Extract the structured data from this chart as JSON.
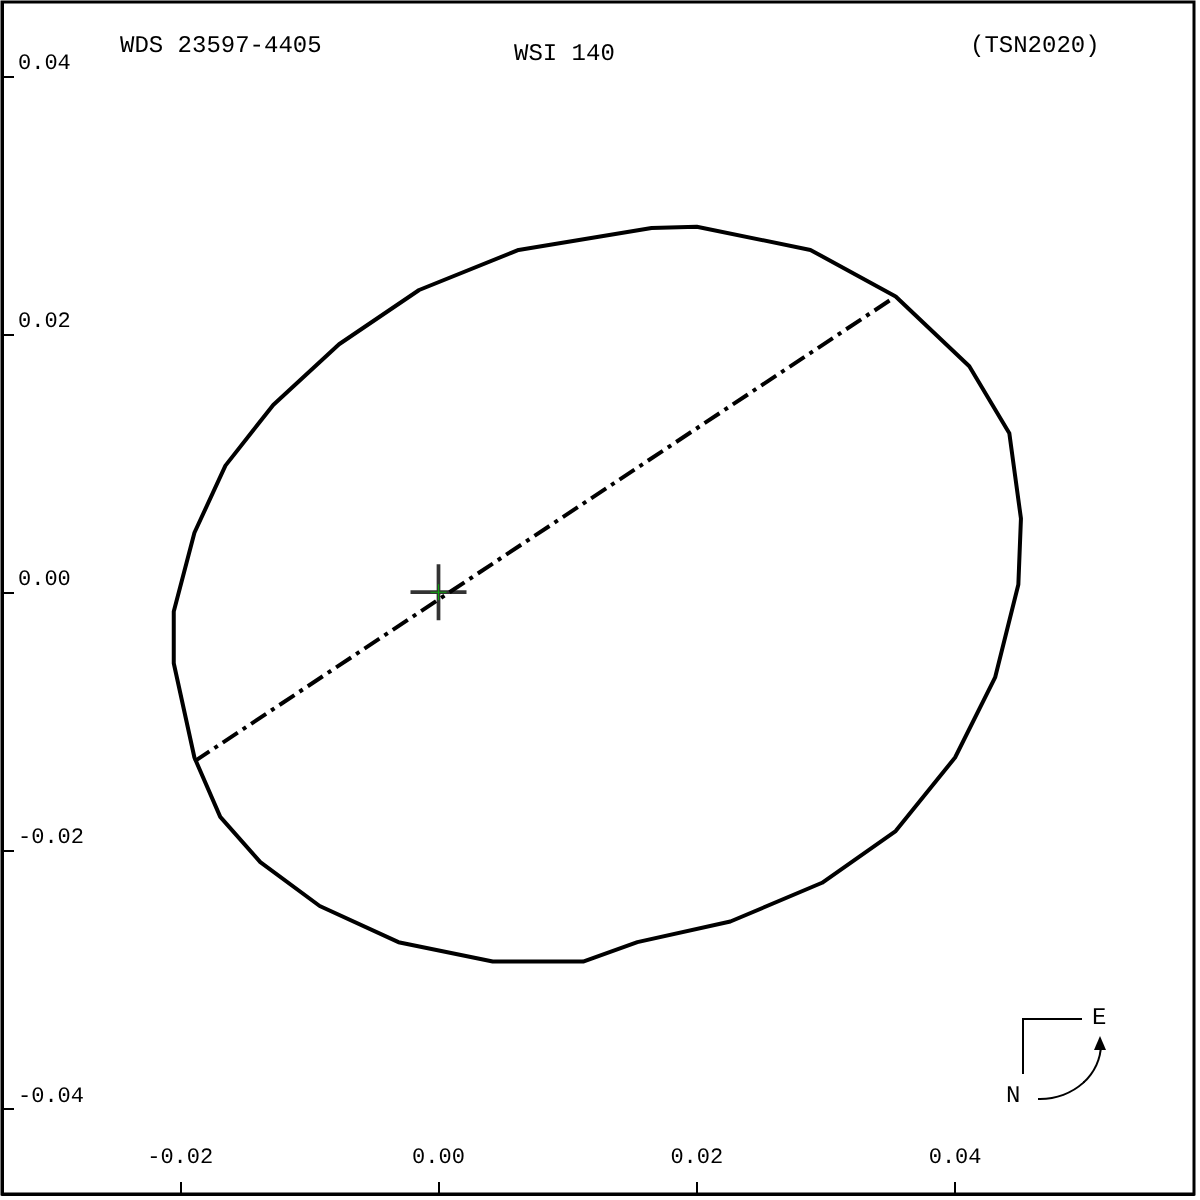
{
  "chart_data": {
    "type": "line",
    "title": "WSI 140",
    "annotations": [
      "WDS 23597-4405",
      "(TSN2020)",
      "N",
      "E"
    ],
    "xlim": [
      -0.0338,
      0.0585
    ],
    "ylim": [
      -0.0466,
      0.0457
    ],
    "xticks": [
      {
        "value": -0.02,
        "label": "-0.02"
      },
      {
        "value": 0,
        "label": "0.00"
      },
      {
        "value": 0.02,
        "label": "0.02"
      },
      {
        "value": 0.04,
        "label": "0.04"
      }
    ],
    "yticks": [
      {
        "value": -0.04,
        "label": "-0.04"
      },
      {
        "value": -0.02,
        "label": "-0.02"
      },
      {
        "value": 0,
        "label": "0.00"
      },
      {
        "value": 0.02,
        "label": "0.02"
      },
      {
        "value": 0.04,
        "label": "0.04"
      }
    ],
    "grid": false,
    "marker": "none",
    "series": [
      {
        "color": "#000000",
        "line_style": "dashed",
        "x": [
          -0.0189,
          0.0354
        ],
        "values": [
          -0.0131,
          0.0229
        ]
      },
      {
        "color": "#000000",
        "x": [
          0.0165,
          0.02,
          0.0288,
          0.0354,
          0.0411,
          0.0442,
          0.0451,
          0.0449,
          0.0431,
          0.04,
          0.0354,
          0.0297,
          0.0226,
          0.0154,
          0.0112,
          0.0042,
          -0.0031,
          -0.0092,
          -0.0138,
          -0.0169,
          -0.0189,
          -0.0205,
          -0.0205,
          -0.0189,
          -0.0165,
          -0.0128,
          -0.0077,
          -0.0015,
          0.0062,
          0.0165,
          0.02
        ],
        "values": [
          0.0282,
          0.0283,
          0.0265,
          0.0229,
          0.0175,
          0.0123,
          0.0057,
          0.0006,
          -0.0066,
          -0.0128,
          -0.0185,
          -0.0225,
          -0.0255,
          -0.0271,
          -0.0286,
          -0.0286,
          -0.0271,
          -0.0243,
          -0.0209,
          -0.0174,
          -0.0128,
          -0.0055,
          -0.0015,
          0.0046,
          0.0098,
          0.0145,
          0.0192,
          0.0234,
          0.0265,
          0.0282,
          0.0283
        ]
      },
      {
        "type": "scatter",
        "marker": "cross",
        "color": "#000000",
        "x": [
          0
        ],
        "values": [
          0
        ]
      },
      {
        "type": "scatter",
        "marker": "cross",
        "color": "#00c000",
        "x": [
          0
        ],
        "values": [
          0
        ]
      }
    ]
  }
}
